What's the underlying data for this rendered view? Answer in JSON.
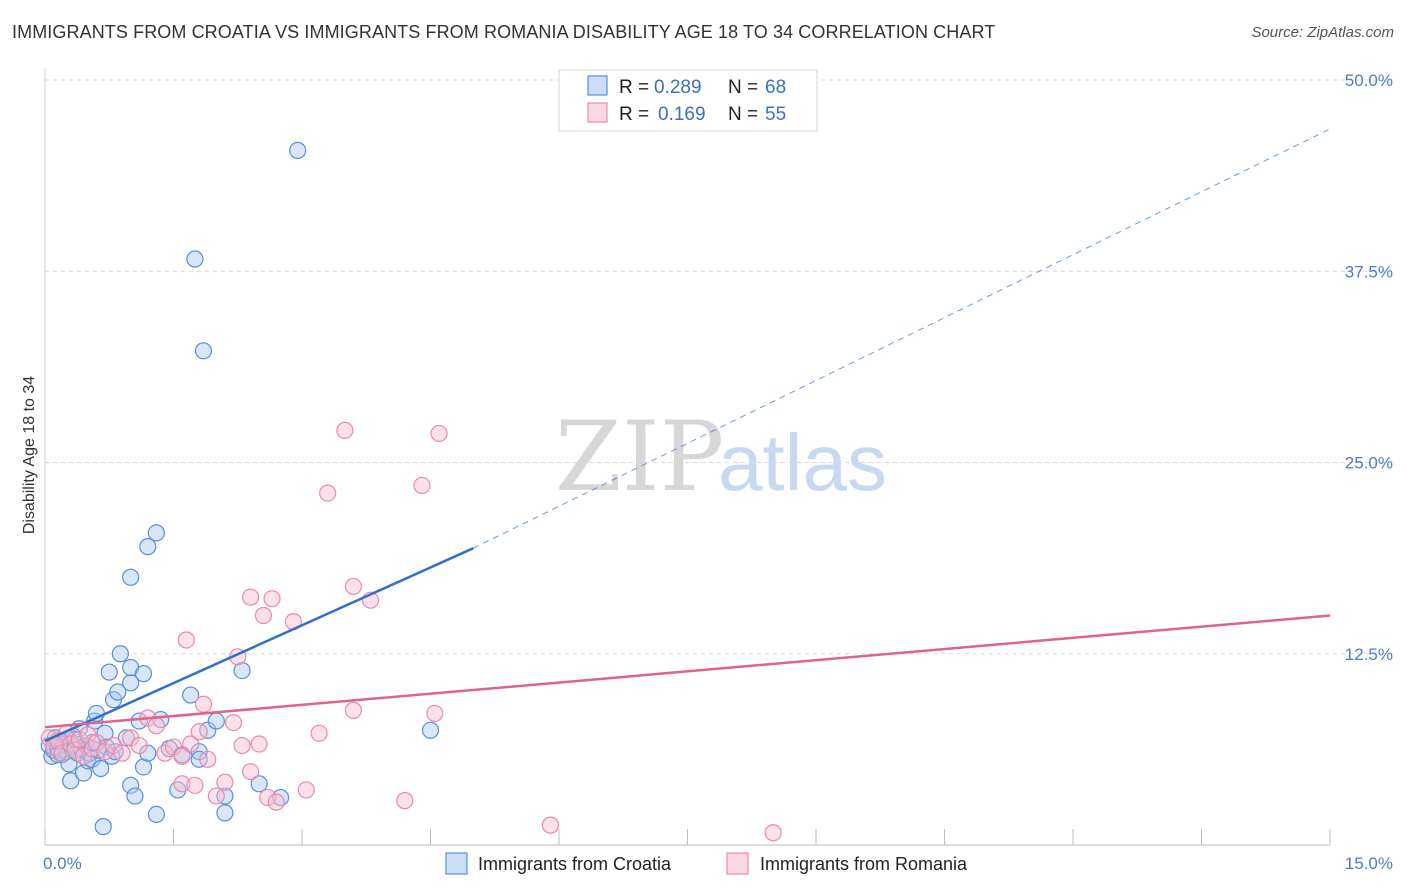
{
  "title": "IMMIGRANTS FROM CROATIA VS IMMIGRANTS FROM ROMANIA DISABILITY AGE 18 TO 34 CORRELATION CHART",
  "source": "Source: ZipAtlas.com",
  "watermark": {
    "zip": "ZIP",
    "atlas": "atlas"
  },
  "colors": {
    "croatia_fill": "#a9c8f0",
    "croatia_stroke": "#5a8fd6",
    "croatia_line": "#2e6fd0",
    "romania_fill": "#f8bcd0",
    "romania_stroke": "#e88aab",
    "romania_line": "#e0628f",
    "grid": "#d8d8d8",
    "axis_text": "#4a7cc9"
  },
  "legend": {
    "croatia": {
      "r_label": "R =",
      "r_value": "0.289",
      "n_label": "N =",
      "n_value": "68"
    },
    "romania": {
      "r_label": "R =",
      "r_value": "0.169",
      "n_label": "N =",
      "n_value": "55"
    }
  },
  "chart_data": {
    "type": "scatter",
    "title": "IMMIGRANTS FROM CROATIA VS IMMIGRANTS FROM ROMANIA DISABILITY AGE 18 TO 34 CORRELATION CHART",
    "xlabel": "",
    "ylabel": "Disability Age 18 to 34",
    "xlim": [
      0,
      15
    ],
    "ylim": [
      0,
      50
    ],
    "x_tick_labels": [
      "0.0%",
      "15.0%"
    ],
    "y_ticks": [
      12.5,
      25.0,
      37.5,
      50.0
    ],
    "y_tick_labels": [
      "12.5%",
      "25.0%",
      "37.5%",
      "50.0%"
    ],
    "legend_position": "top-center",
    "series": [
      {
        "name": "Immigrants from Croatia",
        "r": 0.289,
        "n": 68,
        "trend": {
          "x": [
            0,
            5.0
          ],
          "y": [
            6.8,
            19.4
          ]
        },
        "trend_extension": {
          "x": [
            5.0,
            15.0
          ],
          "y": [
            19.4,
            46.8
          ]
        },
        "points": [
          [
            0.05,
            6.5
          ],
          [
            0.08,
            5.8
          ],
          [
            0.1,
            6.2
          ],
          [
            0.12,
            7.0
          ],
          [
            0.15,
            6.3
          ],
          [
            0.18,
            6.8
          ],
          [
            0.2,
            5.9
          ],
          [
            0.22,
            6.6
          ],
          [
            0.25,
            6.1
          ],
          [
            0.28,
            5.3
          ],
          [
            0.3,
            4.2
          ],
          [
            0.33,
            7.1
          ],
          [
            0.35,
            6.4
          ],
          [
            0.38,
            6.0
          ],
          [
            0.4,
            7.6
          ],
          [
            0.42,
            6.3
          ],
          [
            0.45,
            4.7
          ],
          [
            0.48,
            6.5
          ],
          [
            0.5,
            5.5
          ],
          [
            0.52,
            6.0
          ],
          [
            0.55,
            5.6
          ],
          [
            0.58,
            8.1
          ],
          [
            0.6,
            8.6
          ],
          [
            0.62,
            6.2
          ],
          [
            0.65,
            5.0
          ],
          [
            0.68,
            1.2
          ],
          [
            0.7,
            7.3
          ],
          [
            0.72,
            6.4
          ],
          [
            0.75,
            11.3
          ],
          [
            0.78,
            5.8
          ],
          [
            0.8,
            9.5
          ],
          [
            0.82,
            6.1
          ],
          [
            0.85,
            10.0
          ],
          [
            0.88,
            12.5
          ],
          [
            0.95,
            7.0
          ],
          [
            1.0,
            3.9
          ],
          [
            1.05,
            3.2
          ],
          [
            1.1,
            8.1
          ],
          [
            1.15,
            5.1
          ],
          [
            1.2,
            6.0
          ],
          [
            1.3,
            2.0
          ],
          [
            1.35,
            8.2
          ],
          [
            1.45,
            6.3
          ],
          [
            1.55,
            3.6
          ],
          [
            1.6,
            5.9
          ],
          [
            1.7,
            9.8
          ],
          [
            1.8,
            6.1
          ],
          [
            1.9,
            7.5
          ],
          [
            2.0,
            8.1
          ],
          [
            2.1,
            2.1
          ],
          [
            1.0,
            17.5
          ],
          [
            1.0,
            10.6
          ],
          [
            1.0,
            11.6
          ],
          [
            1.15,
            11.2
          ],
          [
            1.3,
            20.4
          ],
          [
            1.2,
            19.5
          ],
          [
            1.75,
            38.3
          ],
          [
            1.85,
            32.3
          ],
          [
            2.95,
            45.4
          ],
          [
            2.3,
            11.4
          ],
          [
            2.5,
            4.0
          ],
          [
            2.75,
            3.1
          ],
          [
            2.1,
            3.2
          ],
          [
            4.5,
            7.5
          ],
          [
            0.15,
            5.9
          ],
          [
            0.35,
            6.9
          ],
          [
            0.55,
            6.7
          ],
          [
            1.8,
            5.6
          ]
        ]
      },
      {
        "name": "Immigrants from Romania",
        "r": 0.169,
        "n": 55,
        "trend": {
          "x": [
            0,
            15.0
          ],
          "y": [
            7.7,
            15.0
          ]
        },
        "points": [
          [
            0.05,
            7.0
          ],
          [
            0.1,
            6.4
          ],
          [
            0.15,
            6.8
          ],
          [
            0.2,
            6.0
          ],
          [
            0.25,
            7.3
          ],
          [
            0.3,
            6.6
          ],
          [
            0.35,
            6.2
          ],
          [
            0.4,
            6.9
          ],
          [
            0.45,
            5.8
          ],
          [
            0.5,
            7.2
          ],
          [
            0.55,
            6.3
          ],
          [
            0.6,
            6.7
          ],
          [
            0.7,
            6.1
          ],
          [
            0.8,
            6.5
          ],
          [
            0.9,
            6.0
          ],
          [
            1.0,
            7.0
          ],
          [
            1.1,
            6.5
          ],
          [
            1.2,
            8.3
          ],
          [
            1.3,
            7.8
          ],
          [
            1.4,
            6.0
          ],
          [
            1.5,
            6.4
          ],
          [
            1.6,
            5.8
          ],
          [
            1.7,
            6.6
          ],
          [
            1.8,
            7.4
          ],
          [
            1.9,
            5.6
          ],
          [
            2.0,
            3.2
          ],
          [
            2.1,
            4.1
          ],
          [
            2.2,
            8.0
          ],
          [
            2.3,
            6.5
          ],
          [
            2.4,
            4.8
          ],
          [
            2.5,
            6.6
          ],
          [
            2.6,
            3.1
          ],
          [
            2.7,
            2.8
          ],
          [
            1.85,
            9.2
          ],
          [
            1.65,
            13.4
          ],
          [
            2.25,
            12.3
          ],
          [
            2.4,
            16.2
          ],
          [
            2.55,
            15.0
          ],
          [
            2.65,
            16.1
          ],
          [
            2.9,
            14.6
          ],
          [
            3.05,
            3.6
          ],
          [
            3.2,
            7.3
          ],
          [
            3.3,
            23.0
          ],
          [
            3.5,
            27.1
          ],
          [
            3.6,
            8.8
          ],
          [
            3.6,
            16.9
          ],
          [
            3.8,
            16.0
          ],
          [
            4.2,
            2.9
          ],
          [
            4.4,
            23.5
          ],
          [
            4.6,
            26.9
          ],
          [
            4.55,
            8.6
          ],
          [
            5.9,
            1.3
          ],
          [
            8.5,
            0.8
          ],
          [
            1.6,
            4.0
          ],
          [
            1.75,
            3.9
          ]
        ]
      }
    ]
  },
  "bottom_legend": [
    {
      "label": "Immigrants from Croatia"
    },
    {
      "label": "Immigrants from Romania"
    }
  ]
}
